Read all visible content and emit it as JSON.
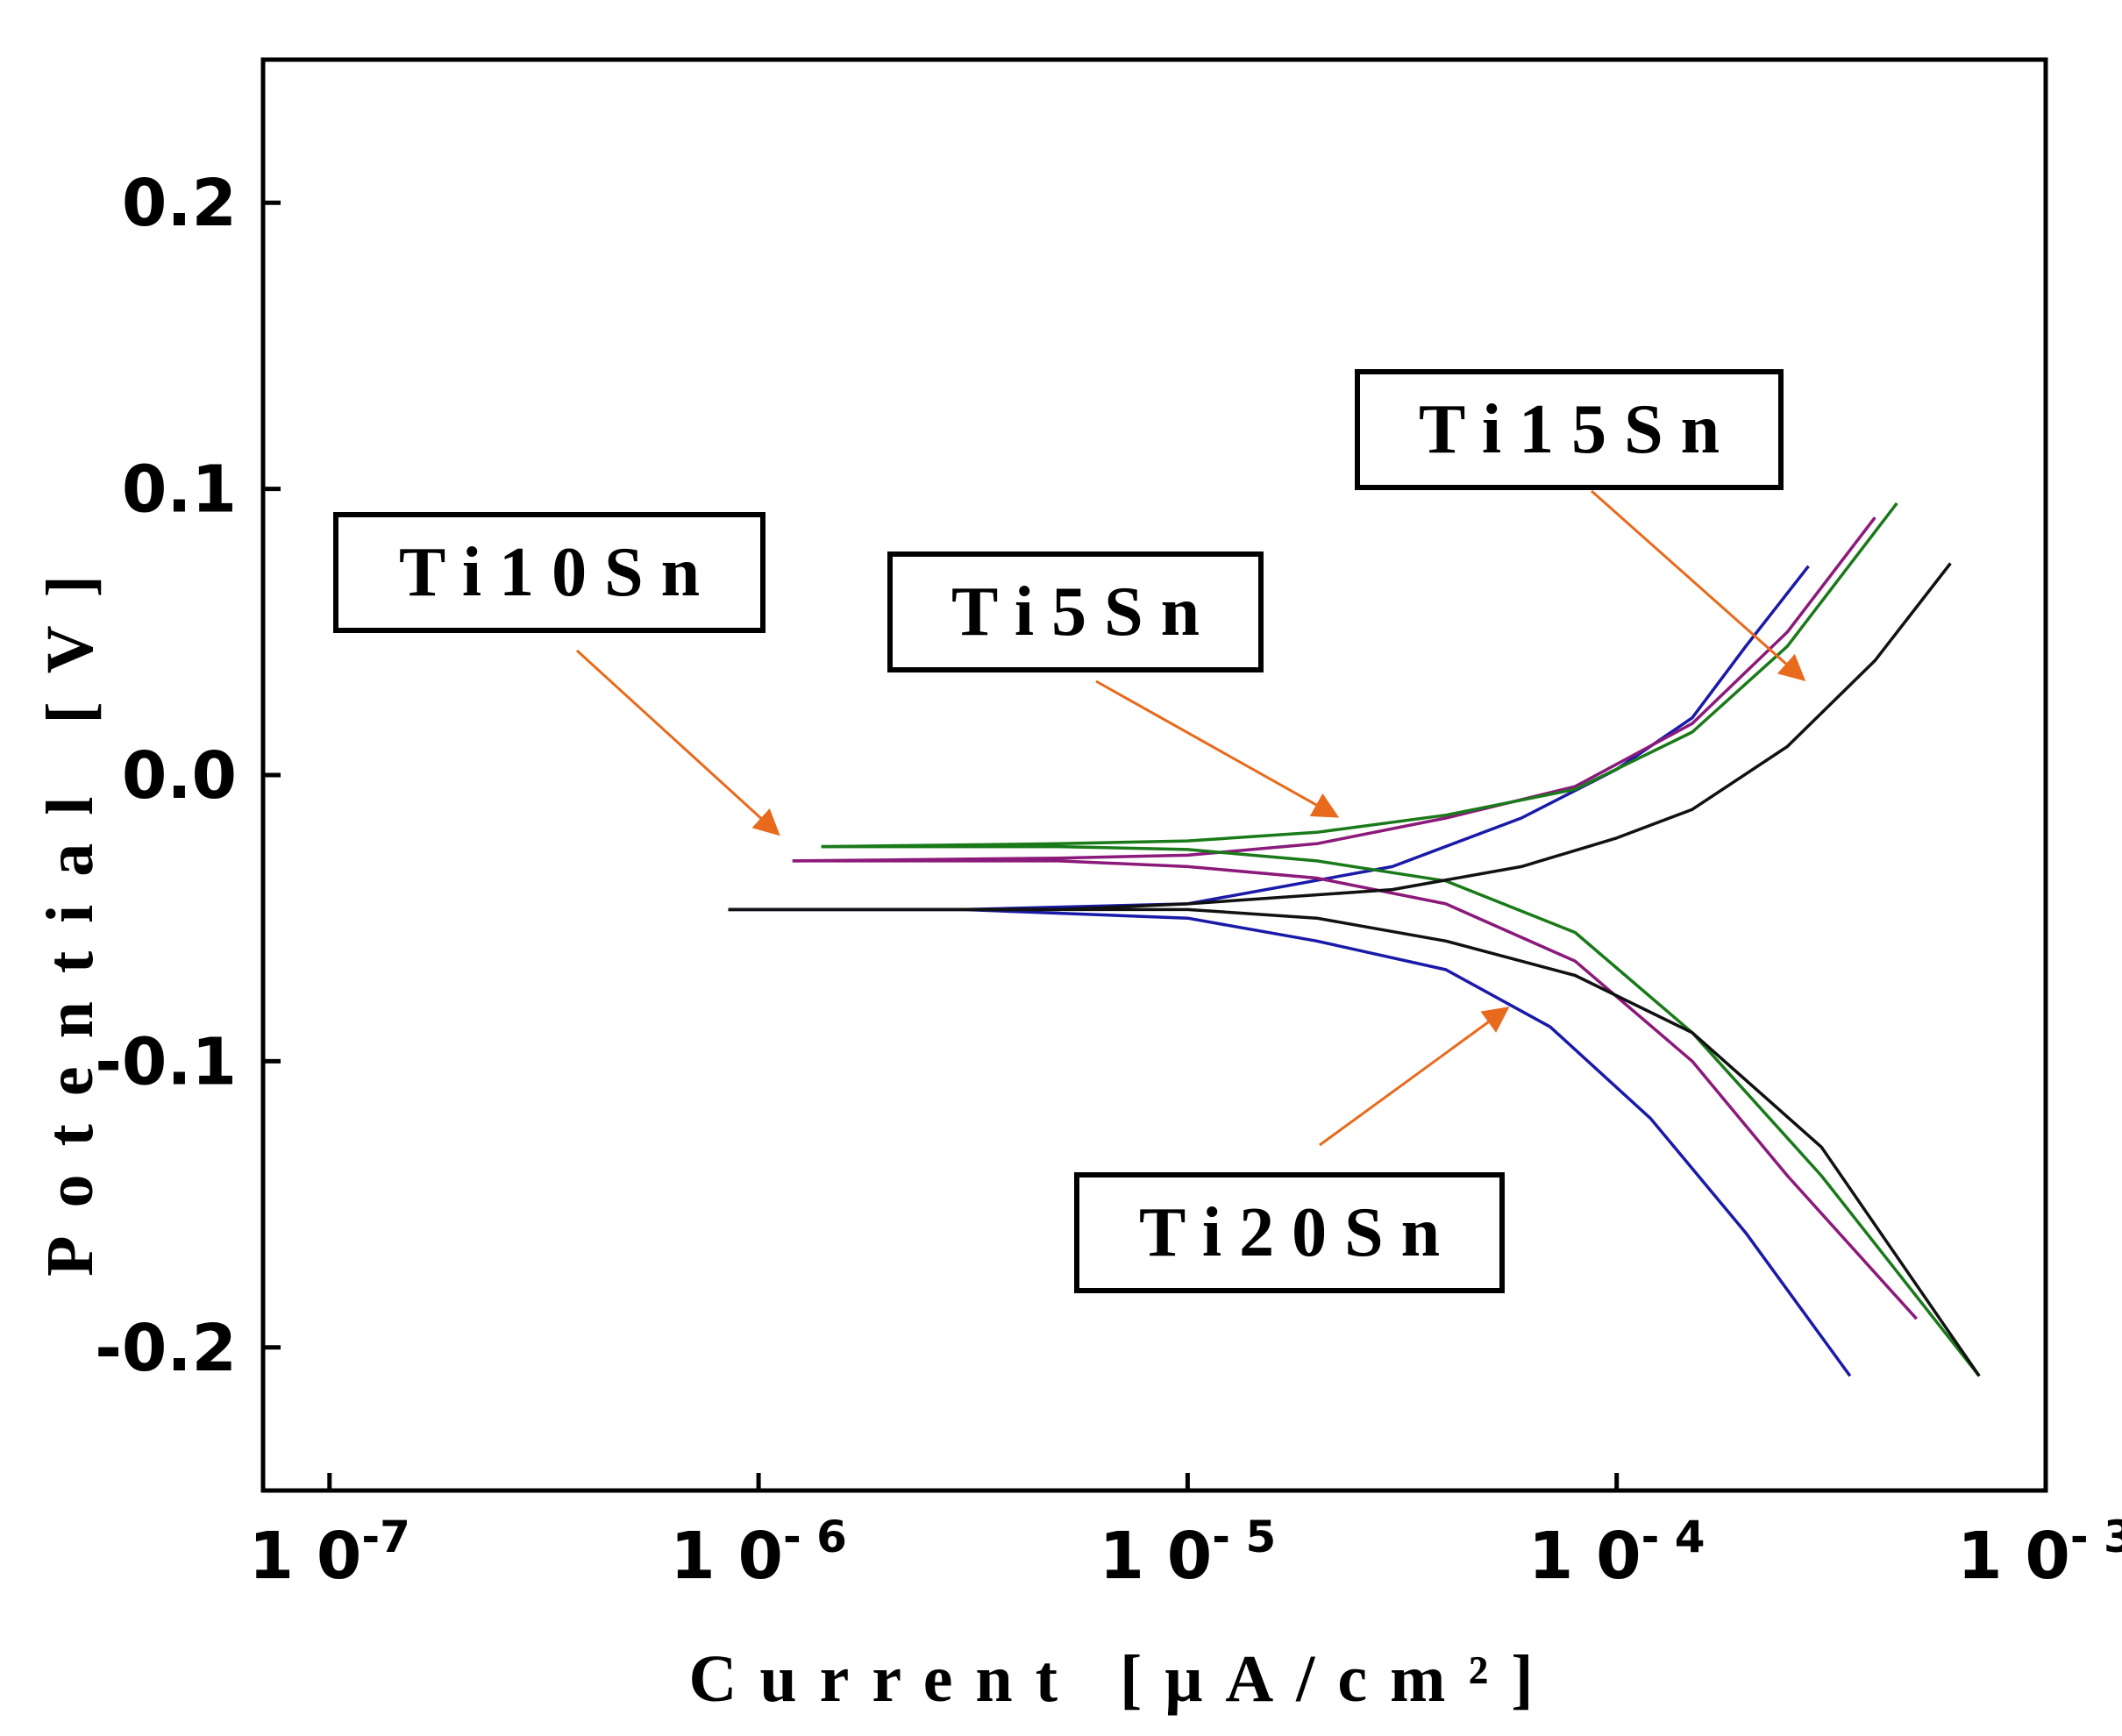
{
  "chart_data": {
    "type": "line",
    "title": "",
    "xlabel": "Current [μA/cm²]",
    "ylabel": "Potential [V]",
    "x_scale": "log",
    "xlim": [
      7e-08,
      0.001
    ],
    "ylim": [
      -0.25,
      0.25
    ],
    "x_tick_labels": [
      {
        "value": 1e-07,
        "base": "1 0",
        "exp": "-7"
      },
      {
        "value": 1e-06,
        "base": "1 0",
        "exp": "- 6"
      },
      {
        "value": 1e-05,
        "base": "1 0",
        "exp": "- 5"
      },
      {
        "value": 0.0001,
        "base": "1 0",
        "exp": "- 4"
      },
      {
        "value": 0.001,
        "base": "1 0",
        "exp": "- 3"
      }
    ],
    "y_ticks": [
      {
        "value": 0.2,
        "label": "0.2"
      },
      {
        "value": 0.1,
        "label": "0.1"
      },
      {
        "value": 0.0,
        "label": "0.0"
      },
      {
        "value": -0.1,
        "label": "-0.1"
      },
      {
        "value": -0.2,
        "label": "-0.2"
      }
    ],
    "grid": false,
    "legend": "none",
    "series": [
      {
        "color": "#1a1aa8",
        "anodic": [
          [
            8.5e-07,
            -0.047
          ],
          [
            3e-06,
            -0.047
          ],
          [
            1e-05,
            -0.045
          ],
          [
            3e-05,
            -0.032
          ],
          [
            6e-05,
            -0.015
          ],
          [
            0.0001,
            0.002
          ],
          [
            0.00015,
            0.02
          ],
          [
            0.0002,
            0.045
          ],
          [
            0.00028,
            0.073
          ]
        ],
        "cathodic": [
          [
            8.5e-07,
            -0.047
          ],
          [
            3e-06,
            -0.047
          ],
          [
            1e-05,
            -0.05
          ],
          [
            2e-05,
            -0.058
          ],
          [
            4e-05,
            -0.068
          ],
          [
            7e-05,
            -0.088
          ],
          [
            0.00012,
            -0.12
          ],
          [
            0.0002,
            -0.16
          ],
          [
            0.00035,
            -0.21
          ]
        ]
      },
      {
        "color": "#8b1a7a",
        "anodic": [
          [
            1.2e-06,
            -0.03
          ],
          [
            5e-06,
            -0.029
          ],
          [
            1e-05,
            -0.028
          ],
          [
            2e-05,
            -0.024
          ],
          [
            4e-05,
            -0.015
          ],
          [
            8e-05,
            -0.004
          ],
          [
            0.00015,
            0.018
          ],
          [
            0.00025,
            0.05
          ],
          [
            0.0004,
            0.09
          ]
        ],
        "cathodic": [
          [
            1.2e-06,
            -0.03
          ],
          [
            5e-06,
            -0.03
          ],
          [
            1e-05,
            -0.032
          ],
          [
            2e-05,
            -0.036
          ],
          [
            4e-05,
            -0.045
          ],
          [
            8e-05,
            -0.065
          ],
          [
            0.00015,
            -0.1
          ],
          [
            0.00025,
            -0.14
          ],
          [
            0.0005,
            -0.19
          ]
        ]
      },
      {
        "color": "#1a7a1a",
        "anodic": [
          [
            1.4e-06,
            -0.025
          ],
          [
            5e-06,
            -0.024
          ],
          [
            1e-05,
            -0.023
          ],
          [
            2e-05,
            -0.02
          ],
          [
            4e-05,
            -0.014
          ],
          [
            8e-05,
            -0.005
          ],
          [
            0.00015,
            0.015
          ],
          [
            0.00025,
            0.045
          ],
          [
            0.00045,
            0.095
          ]
        ],
        "cathodic": [
          [
            1.4e-06,
            -0.025
          ],
          [
            5e-06,
            -0.025
          ],
          [
            1e-05,
            -0.026
          ],
          [
            2e-05,
            -0.03
          ],
          [
            4e-05,
            -0.037
          ],
          [
            8e-05,
            -0.055
          ],
          [
            0.00015,
            -0.09
          ],
          [
            0.0003,
            -0.14
          ],
          [
            0.0007,
            -0.21
          ]
        ]
      },
      {
        "color": "#111111",
        "anodic": [
          [
            8.5e-07,
            -0.047
          ],
          [
            5e-06,
            -0.047
          ],
          [
            1e-05,
            -0.045
          ],
          [
            3e-05,
            -0.04
          ],
          [
            6e-05,
            -0.032
          ],
          [
            0.0001,
            -0.022
          ],
          [
            0.00015,
            -0.012
          ],
          [
            0.00025,
            0.01
          ],
          [
            0.0004,
            0.04
          ],
          [
            0.0006,
            0.074
          ]
        ],
        "cathodic": [
          [
            8.5e-07,
            -0.047
          ],
          [
            5e-06,
            -0.047
          ],
          [
            1e-05,
            -0.047
          ],
          [
            2e-05,
            -0.05
          ],
          [
            4e-05,
            -0.058
          ],
          [
            8e-05,
            -0.07
          ],
          [
            0.00015,
            -0.09
          ],
          [
            0.0003,
            -0.13
          ],
          [
            0.0007,
            -0.21
          ]
        ]
      }
    ],
    "annotations": [
      {
        "label": "Ti10Sn",
        "spaced": "T i 1 0 S n",
        "arrow_to": [
          1.1e-06,
          -0.02
        ]
      },
      {
        "label": "Ti5Sn",
        "spaced": "T i 5 S n",
        "arrow_to": [
          2.2e-05,
          -0.014
        ]
      },
      {
        "label": "Ti15Sn",
        "spaced": "T i 1 5 S n",
        "arrow_to": [
          0.00027,
          0.034
        ]
      },
      {
        "label": "Ti20Sn",
        "spaced": "T i 2 0 S n",
        "arrow_to": [
          5.5e-05,
          -0.082
        ]
      }
    ],
    "colors": {
      "arrow": "#e86a1c",
      "axis": "#000000"
    }
  }
}
